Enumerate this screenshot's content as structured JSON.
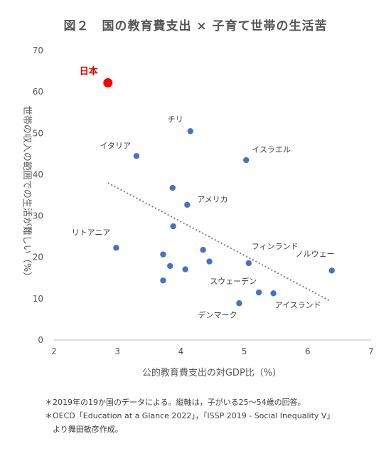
{
  "chart_data": {
    "type": "scatter",
    "title": "図２　国の教育費支出 × 子育て世帯の生活苦",
    "xlabel": "公的教育費支出の対GDP比（%）",
    "ylabel": "世帯の収入の範囲での生活が難しい（%）",
    "xlim": [
      2,
      7
    ],
    "ylim": [
      0,
      70
    ],
    "xticks": [
      2,
      3,
      4,
      5,
      6,
      7
    ],
    "yticks": [
      0,
      10,
      20,
      30,
      40,
      50,
      60,
      70
    ],
    "colors": {
      "point": "#4472c4",
      "highlight": "#ff0000",
      "trend": "#808080"
    },
    "points": [
      {
        "label": "日本",
        "x": 2.85,
        "y": 62.2,
        "highlight": true
      },
      {
        "label": "チリ",
        "x": 4.15,
        "y": 50.5
      },
      {
        "label": "イタリア",
        "x": 3.3,
        "y": 44.5
      },
      {
        "label": "イスラエル",
        "x": 5.03,
        "y": 43.5
      },
      {
        "label": "",
        "x": 3.87,
        "y": 36.8
      },
      {
        "label": "アメリカ",
        "x": 4.1,
        "y": 32.7
      },
      {
        "label": "",
        "x": 3.88,
        "y": 27.5
      },
      {
        "label": "リトアニア",
        "x": 2.98,
        "y": 22.3
      },
      {
        "label": "",
        "x": 4.35,
        "y": 21.8
      },
      {
        "label": "",
        "x": 3.72,
        "y": 20.7
      },
      {
        "label": "",
        "x": 4.45,
        "y": 19.0
      },
      {
        "label": "フィンランド",
        "x": 5.07,
        "y": 18.6
      },
      {
        "label": "ノルウェー",
        "x": 6.38,
        "y": 16.8
      },
      {
        "label": "",
        "x": 3.83,
        "y": 17.9
      },
      {
        "label": "",
        "x": 4.07,
        "y": 17.1
      },
      {
        "label": "",
        "x": 3.72,
        "y": 14.4
      },
      {
        "label": "スウェーデン",
        "x": 5.23,
        "y": 11.5
      },
      {
        "label": "アイスランド",
        "x": 5.46,
        "y": 11.3
      },
      {
        "label": "デンマーク",
        "x": 4.92,
        "y": 8.9
      }
    ],
    "trendline": {
      "x": [
        2.85,
        6.36
      ],
      "y": [
        38.0,
        9.4
      ]
    }
  },
  "notes": [
    "＊2019年の19か国のデータによる。縦軸は，子がいる25～54歳の回答。",
    "＊OECD「Education at a Glance 2022」，「ISSP 2019 - Social Inequality V」",
    "　より舞田敏彦作成。"
  ]
}
